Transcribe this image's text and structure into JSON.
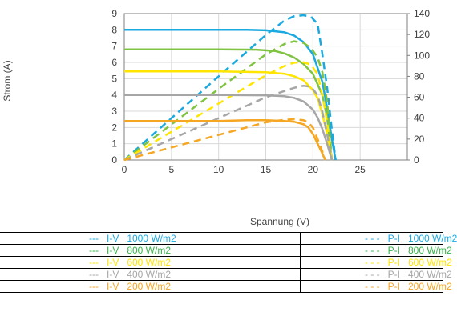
{
  "chart_data": {
    "type": "line",
    "title": "",
    "xlabel": "Spannung (V)",
    "ylabel": "Strom (A)",
    "y2label": "",
    "xlim": [
      0,
      30
    ],
    "ylim": [
      0,
      9
    ],
    "y2lim": [
      0,
      140
    ],
    "xticks": [
      0,
      5,
      10,
      15,
      20,
      25
    ],
    "yticks": [
      0,
      1,
      2,
      3,
      4,
      5,
      6,
      7,
      8,
      9
    ],
    "y2ticks": [
      0,
      20,
      40,
      60,
      80,
      100,
      120,
      140
    ],
    "grid": true,
    "legend_position": "bottom",
    "series": [
      {
        "type": "I-V",
        "irradiance": "1000 W/m2",
        "axis": "left",
        "dash": "solid",
        "color": "#1BA9E0",
        "x": [
          0,
          5,
          10,
          13,
          15,
          17,
          18,
          19,
          20,
          21,
          21.5,
          22,
          22.4
        ],
        "y": [
          8.0,
          8.0,
          8.0,
          8.0,
          7.97,
          7.85,
          7.65,
          7.25,
          6.5,
          4.8,
          3.2,
          1.3,
          0
        ]
      },
      {
        "type": "P-I",
        "irradiance": "1000 W/m2",
        "axis": "right",
        "dash": "dashed",
        "color": "#1BA9E0",
        "x": [
          0,
          5,
          10,
          15,
          17,
          18,
          19,
          19.8,
          20.5,
          21,
          21.5,
          22,
          22.4
        ],
        "y": [
          0,
          40,
          80,
          119.5,
          133.5,
          137.5,
          138.5,
          137,
          130,
          101,
          69,
          29,
          0
        ]
      },
      {
        "type": "I-V",
        "irradiance": "800 W/m2",
        "axis": "left",
        "dash": "solid",
        "color": "#80C342",
        "x": [
          0,
          5,
          10,
          14,
          16,
          17,
          18,
          19,
          20,
          21,
          21.5,
          22
        ],
        "y": [
          6.8,
          6.8,
          6.8,
          6.78,
          6.7,
          6.55,
          6.3,
          5.9,
          5.3,
          4.0,
          2.6,
          0
        ]
      },
      {
        "type": "P-I",
        "irradiance": "800 W/m2",
        "axis": "right",
        "dash": "dashed",
        "color": "#80C342",
        "x": [
          0,
          5,
          10,
          15,
          17,
          18,
          19,
          19.8,
          20.5,
          21,
          21.5,
          22
        ],
        "y": [
          0,
          34,
          68,
          101,
          111,
          113.5,
          112,
          107,
          98,
          84,
          56,
          0
        ]
      },
      {
        "type": "I-V",
        "irradiance": "600 W/m2",
        "axis": "left",
        "dash": "solid",
        "color": "#FFE500",
        "x": [
          0,
          5,
          10,
          15,
          17,
          18,
          19,
          20,
          20.5,
          21,
          21.5,
          22
        ],
        "y": [
          5.45,
          5.45,
          5.45,
          5.4,
          5.3,
          5.15,
          4.9,
          4.3,
          3.8,
          2.8,
          1.6,
          0
        ]
      },
      {
        "type": "P-I",
        "irradiance": "600 W/m2",
        "axis": "right",
        "dash": "dashed",
        "color": "#FFE500",
        "x": [
          0,
          5,
          10,
          15,
          17,
          18,
          19,
          19.8,
          20.5,
          21,
          21.5,
          22
        ],
        "y": [
          0,
          27,
          54,
          81,
          90,
          93,
          93.5,
          91,
          82,
          62,
          36,
          0
        ]
      },
      {
        "type": "I-V",
        "irradiance": "400 W/m2",
        "axis": "left",
        "dash": "solid",
        "color": "#A6A6A6",
        "x": [
          0,
          5,
          10,
          15,
          17,
          18,
          19,
          20,
          20.5,
          21,
          21.5,
          22
        ],
        "y": [
          4.0,
          4.0,
          4.0,
          3.98,
          3.92,
          3.82,
          3.6,
          3.1,
          2.6,
          1.9,
          1.0,
          0
        ]
      },
      {
        "type": "P-I",
        "irradiance": "400 W/m2",
        "axis": "right",
        "dash": "dashed",
        "color": "#A6A6A6",
        "x": [
          0,
          5,
          10,
          15,
          17,
          18,
          19,
          19.8,
          20.5,
          21,
          21.5,
          22
        ],
        "y": [
          0,
          20,
          40,
          60,
          66,
          69,
          71,
          70,
          62,
          46,
          25,
          0
        ]
      },
      {
        "type": "I-V",
        "irradiance": "200 W/m2",
        "axis": "left",
        "dash": "solid",
        "color": "#F5A623",
        "x": [
          0,
          5,
          10,
          13,
          15,
          17,
          18,
          19,
          19.5,
          20,
          20.5,
          21,
          21.3
        ],
        "y": [
          2.4,
          2.4,
          2.4,
          2.45,
          2.45,
          2.4,
          2.35,
          2.2,
          2.0,
          1.6,
          1.0,
          0.4,
          0
        ]
      },
      {
        "type": "P-I",
        "irradiance": "200 W/m2",
        "axis": "right",
        "dash": "dashed",
        "color": "#F5A623",
        "x": [
          0,
          5,
          10,
          15,
          17,
          18,
          19,
          19.5,
          20,
          20.5,
          21,
          21.3
        ],
        "y": [
          0,
          12,
          24,
          36,
          38.5,
          39,
          38,
          36,
          31,
          20,
          8,
          0
        ]
      }
    ]
  },
  "legend": {
    "rows": [
      {
        "left": "---   I-V   1000 W/m2",
        "right": "- - -   P-I   1000 W/m2",
        "color": "#1BA9E0"
      },
      {
        "left": "---   I-V   800 W/m2",
        "right": "- - -   P-I   800 W/m2",
        "color": "#37B34A"
      },
      {
        "left": "---   I-V   600 W/m2",
        "right": "- - -   P-I   600 W/m2",
        "color": "#FFE500"
      },
      {
        "left": "---   I-V   400 W/m2",
        "right": "- - -   P-I   400 W/m2",
        "color": "#A6A6A6"
      },
      {
        "left": "---   I-V   200 W/m2",
        "right": "- - -   P-I   200 W/m2",
        "color": "#F5A623"
      }
    ]
  }
}
